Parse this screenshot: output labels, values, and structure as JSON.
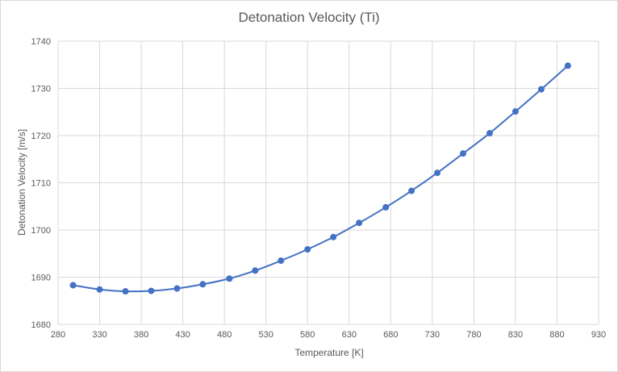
{
  "chart_data": {
    "type": "line",
    "title": "Detonation Velocity (Ti)",
    "xlabel": "Temperature  [K]",
    "ylabel": "Detonation Velocity [m/s]",
    "xlim": [
      280,
      930
    ],
    "ylim": [
      1680,
      1740
    ],
    "xticks": [
      280,
      330,
      380,
      430,
      480,
      530,
      580,
      630,
      680,
      730,
      780,
      830,
      880,
      930
    ],
    "yticks": [
      1680,
      1690,
      1700,
      1710,
      1720,
      1730,
      1740
    ],
    "grid": true,
    "legend": "none",
    "series": [
      {
        "color": "#4472c4",
        "marker": "circle",
        "smooth": true,
        "points": [
          [
            298,
            1688.3
          ],
          [
            330,
            1687.4
          ],
          [
            361,
            1687.0
          ],
          [
            392,
            1687.1
          ],
          [
            423,
            1687.6
          ],
          [
            454,
            1688.5
          ],
          [
            486,
            1689.7
          ],
          [
            517,
            1691.4
          ],
          [
            548,
            1693.5
          ],
          [
            580,
            1695.9
          ],
          [
            611,
            1698.5
          ],
          [
            642,
            1701.5
          ],
          [
            674,
            1704.8
          ],
          [
            705,
            1708.3
          ],
          [
            736,
            1712.1
          ],
          [
            767,
            1716.2
          ],
          [
            799,
            1720.5
          ],
          [
            830,
            1725.1
          ],
          [
            861,
            1729.8
          ],
          [
            893,
            1734.8
          ]
        ]
      }
    ]
  }
}
